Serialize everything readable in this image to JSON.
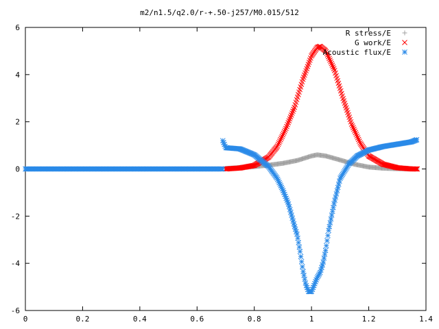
{
  "chart_data": {
    "type": "scatter",
    "title": "m2/n1.5/q2.0/r-+.50-j257/M0.015/512",
    "xlabel": "",
    "ylabel": "",
    "xlim": [
      0,
      1.4
    ],
    "ylim": [
      -6,
      6
    ],
    "xticks": [
      "0",
      "0.2",
      "0.4",
      "0.6",
      "0.8",
      "1",
      "1.2",
      "1.4"
    ],
    "yticks": [
      "6",
      "4",
      "2",
      "0",
      "-2",
      "-4",
      "-6"
    ],
    "xtick_values": [
      0,
      0.2,
      0.4,
      0.6,
      0.8,
      1.0,
      1.2,
      1.4
    ],
    "ytick_values": [
      6,
      4,
      2,
      0,
      -2,
      -4,
      -6
    ],
    "grid": false,
    "legend_position": "top-right",
    "series": [
      {
        "name": "R stress/E",
        "marker": "plus",
        "color": "#a0a0a0",
        "x": [
          0.7,
          0.75,
          0.8,
          0.85,
          0.9,
          0.95,
          1.0,
          1.02,
          1.05,
          1.1,
          1.15,
          1.2,
          1.25,
          1.3,
          1.35,
          1.37
        ],
        "y": [
          0.02,
          0.06,
          0.1,
          0.16,
          0.24,
          0.36,
          0.55,
          0.6,
          0.55,
          0.38,
          0.2,
          0.08,
          0.03,
          0.01,
          0.0,
          0.0
        ]
      },
      {
        "name": "G work/E",
        "marker": "cross",
        "color": "#ff0000",
        "x": [
          0.7,
          0.75,
          0.8,
          0.85,
          0.88,
          0.91,
          0.94,
          0.97,
          1.0,
          1.02,
          1.03,
          1.05,
          1.08,
          1.11,
          1.14,
          1.17,
          1.2,
          1.25,
          1.3,
          1.35,
          1.37
        ],
        "y": [
          0.0,
          0.04,
          0.15,
          0.5,
          0.95,
          1.7,
          2.6,
          3.8,
          4.8,
          5.15,
          5.2,
          5.0,
          4.2,
          3.0,
          1.9,
          1.1,
          0.55,
          0.2,
          0.05,
          0.0,
          0.0
        ]
      },
      {
        "name": "Acoustic flux/E",
        "marker": "star",
        "color": "#2a8ae8",
        "x": [
          0.69,
          0.7,
          0.75,
          0.8,
          0.85,
          0.88,
          0.9,
          0.92,
          0.94,
          0.95,
          0.96,
          0.97,
          0.98,
          0.99,
          1.0,
          1.01,
          1.02,
          1.03,
          1.04,
          1.05,
          1.06,
          1.08,
          1.1,
          1.13,
          1.16,
          1.2,
          1.25,
          1.3,
          1.35,
          1.37
        ],
        "y": [
          1.2,
          0.9,
          0.85,
          0.6,
          0.1,
          -0.4,
          -0.9,
          -1.5,
          -2.4,
          -2.8,
          -3.5,
          -4.3,
          -4.9,
          -5.2,
          -5.2,
          -4.9,
          -4.6,
          -4.4,
          -4.0,
          -3.4,
          -2.6,
          -1.4,
          -0.4,
          0.2,
          0.55,
          0.8,
          0.95,
          1.05,
          1.15,
          1.25
        ]
      }
    ],
    "flat_range": {
      "x_start": 0.0,
      "x_end": 0.69,
      "y": 0.0
    }
  }
}
